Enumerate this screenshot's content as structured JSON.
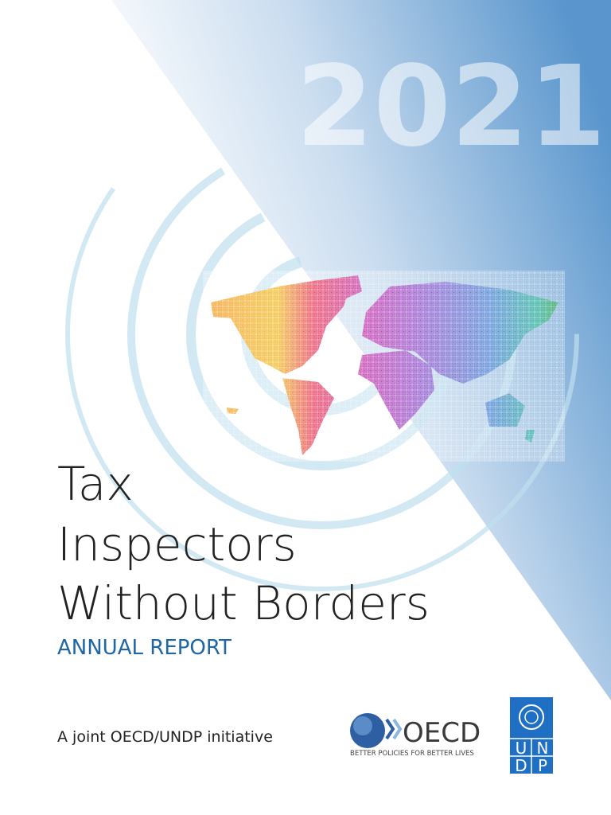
{
  "cover": {
    "year": "2021",
    "title_lines": [
      "Tax",
      "Inspectors",
      "Without Borders"
    ],
    "subtitle": "ANNUAL REPORT",
    "tagline": "A joint OECD/UNDP initiative",
    "oecd_logo": {
      "name": "OECD",
      "motto": "BETTER POLICIES FOR BETTER LIVES"
    },
    "undp_logo": {
      "letters": [
        "U",
        "N",
        "D",
        "P"
      ]
    }
  }
}
